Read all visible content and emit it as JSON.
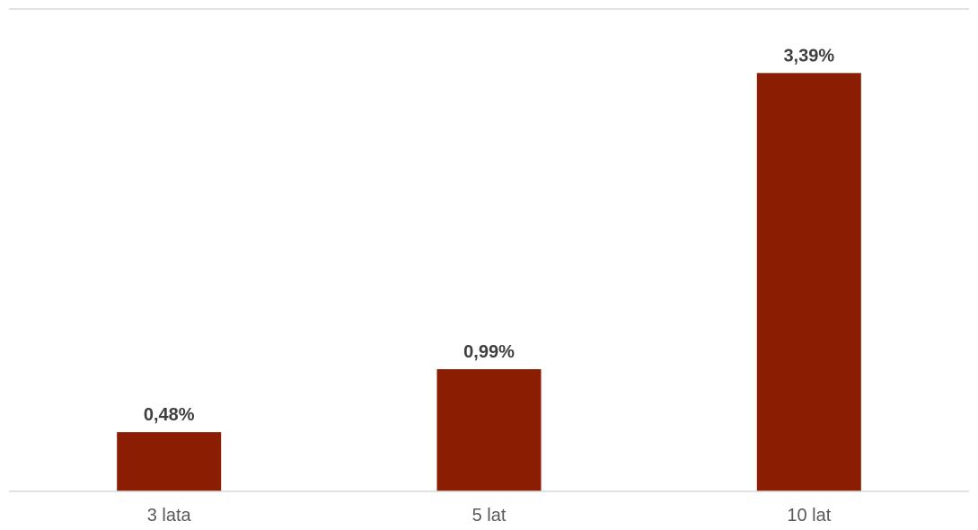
{
  "chart_data": {
    "type": "bar",
    "categories": [
      "3 lata",
      "5 lat",
      "10 lat"
    ],
    "values": [
      0.48,
      0.99,
      3.39
    ],
    "data_labels": [
      "0,48%",
      "0,99%",
      "3,39%"
    ],
    "title": "",
    "xlabel": "",
    "ylabel": "",
    "ylim": [
      0,
      3.8
    ],
    "grid": false,
    "legend": "none",
    "colors": {
      "bar": "#8b1e02",
      "data_label": "#3f3f3f",
      "tick_label": "#595959",
      "axis_line": "#d9d9d9"
    }
  }
}
